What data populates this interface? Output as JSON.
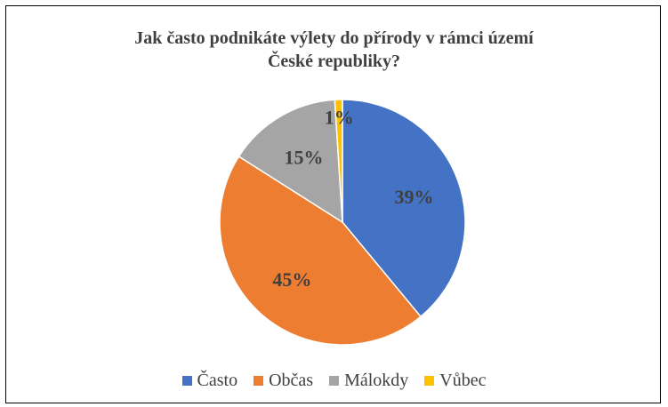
{
  "chart_data": {
    "type": "pie",
    "title_lines": [
      "Jak často podnikáte výlety do přírody v rámci území",
      "České republiky?"
    ],
    "categories": [
      "Často",
      "Občas",
      "Málokdy",
      "Vůbec"
    ],
    "values": [
      39,
      45,
      15,
      1
    ],
    "labels": [
      "39%",
      "45%",
      "15%",
      "1%"
    ],
    "colors": [
      "#4472C4",
      "#ED7D31",
      "#A5A5A5",
      "#FFC000"
    ],
    "legend_position": "bottom"
  }
}
